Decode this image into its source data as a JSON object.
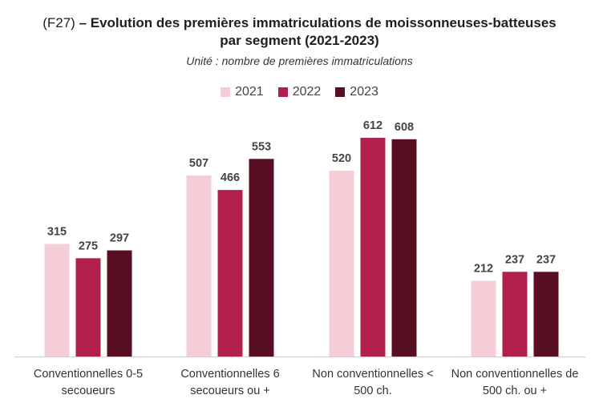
{
  "title_code": "(F27)",
  "title_main": "– Evolution des premières immatriculations de moissonneuses-batteuses",
  "title_line2": "par segment (2021-2023)",
  "subtitle": "Unité : nombre de premières immatriculations",
  "colors": {
    "2021": "#f4cdd6",
    "2022": "#b0204b",
    "2023": "#590f22"
  },
  "chart_data": {
    "type": "bar",
    "title": "(F27) – Evolution des premières immatriculations de moissonneuses-batteuses par segment (2021-2023)",
    "subtitle": "Unité : nombre de premières immatriculations",
    "categories": [
      [
        "Conventionnelles 0-5",
        "secoueurs"
      ],
      [
        "Conventionnelles 6",
        "secoueurs ou +"
      ],
      [
        "Non conventionnelles <",
        "500 ch."
      ],
      [
        "Non conventionnelles de",
        "500 ch. ou +"
      ]
    ],
    "series": [
      {
        "name": "2021",
        "values": [
          315,
          507,
          520,
          212
        ]
      },
      {
        "name": "2022",
        "values": [
          275,
          466,
          612,
          237
        ]
      },
      {
        "name": "2023",
        "values": [
          297,
          553,
          608,
          237
        ]
      }
    ],
    "legend_position": "top-center",
    "grid": false,
    "data_labels": true
  }
}
